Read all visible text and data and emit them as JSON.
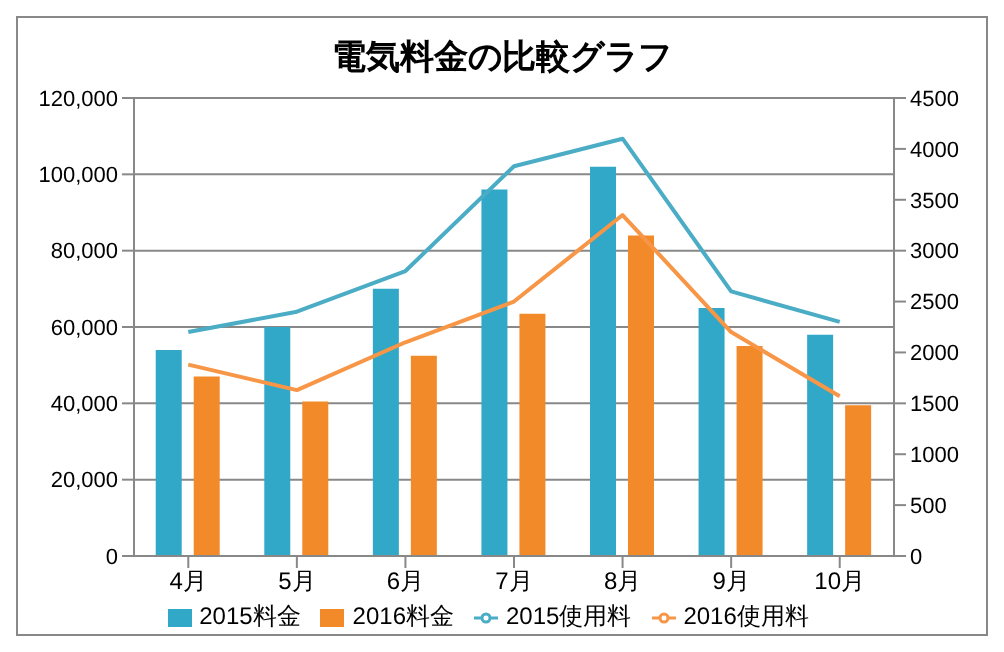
{
  "chart_data": {
    "type": "bar",
    "title": "電気料金の比較グラフ",
    "categories": [
      "4月",
      "5月",
      "6月",
      "7月",
      "8月",
      "9月",
      "10月"
    ],
    "series": [
      {
        "name": "2015料金",
        "color": "#31a8c8",
        "values": [
          54000,
          60000,
          70000,
          96000,
          102000,
          65000,
          58000
        ]
      },
      {
        "name": "2016料金",
        "color": "#f28a2a",
        "values": [
          47000,
          40500,
          52500,
          63500,
          84000,
          55000,
          39500
        ]
      },
      {
        "name": "2015使用料",
        "type": "line",
        "axis": "y2",
        "color": "#4bacc6",
        "values": [
          2200,
          2400,
          2800,
          3830,
          4100,
          2600,
          2300
        ]
      },
      {
        "name": "2016使用料",
        "type": "line",
        "axis": "y2",
        "color": "#f79646",
        "values": [
          1880,
          1630,
          2100,
          2500,
          3350,
          2200,
          1570
        ]
      }
    ],
    "ylim": [
      0,
      120000
    ],
    "yticks": [
      {
        "value": 0,
        "label": "0"
      },
      {
        "value": 20000,
        "label": "20,000"
      },
      {
        "value": 40000,
        "label": "40,000"
      },
      {
        "value": 60000,
        "label": "60,000"
      },
      {
        "value": 80000,
        "label": "80,000"
      },
      {
        "value": 100000,
        "label": "100,000"
      },
      {
        "value": 120000,
        "label": "120,000"
      }
    ],
    "y2lim": [
      0,
      4500
    ],
    "y2ticks": [
      0,
      500,
      1000,
      1500,
      2000,
      2500,
      3000,
      3500,
      4000,
      4500
    ],
    "grid": "y",
    "legend": "bottom",
    "marker": "none"
  }
}
